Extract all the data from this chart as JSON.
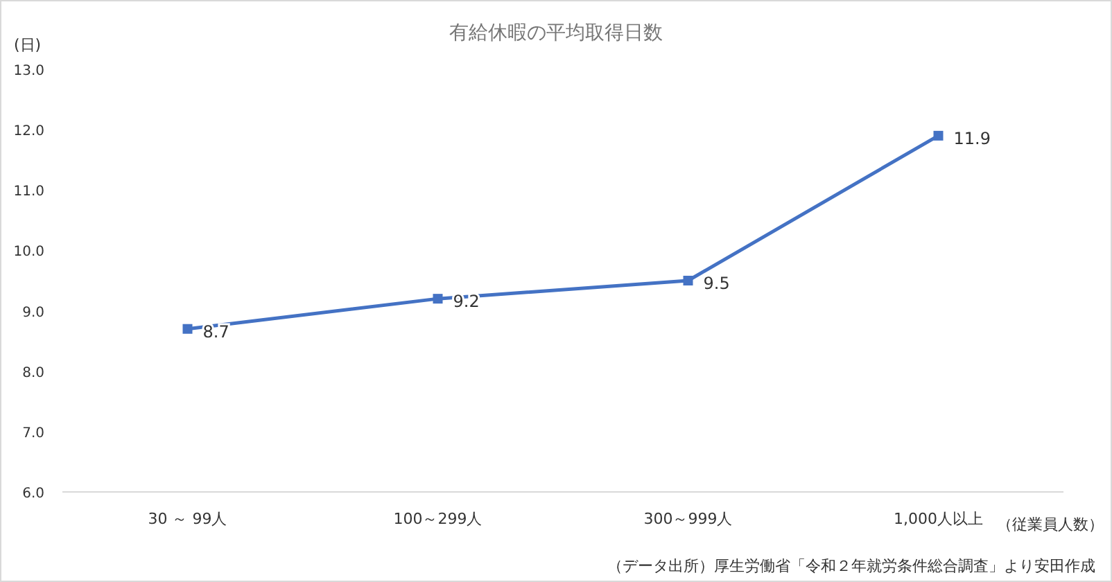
{
  "chart_data": {
    "type": "line",
    "title": "有給休暇の平均取得日数",
    "ylabel": "(日)",
    "xlabel": "（従業員人数）",
    "categories": [
      "30 ～ 99人",
      "100～299人",
      "300～999人",
      "1,000人以上"
    ],
    "series": [
      {
        "color": "#4472c4",
        "values": [
          8.7,
          9.2,
          9.5,
          11.9
        ]
      }
    ],
    "ylim": [
      6,
      13
    ],
    "yticks": [
      {
        "value": 6,
        "label": "6.0"
      },
      {
        "value": 7,
        "label": "7.0"
      },
      {
        "value": 8,
        "label": "8.0"
      },
      {
        "value": 9,
        "label": "9.0"
      },
      {
        "value": 10,
        "label": "10.0"
      },
      {
        "value": 11,
        "label": "11.0"
      },
      {
        "value": 12,
        "label": "12.0"
      },
      {
        "value": 13,
        "label": "13.0"
      }
    ],
    "grid": false,
    "marker": "square",
    "line_style": "solid",
    "data_labels": true,
    "annotations": [
      "（データ出所）厚生労働省「令和２年就労条件総合調査」より安田作成"
    ]
  }
}
